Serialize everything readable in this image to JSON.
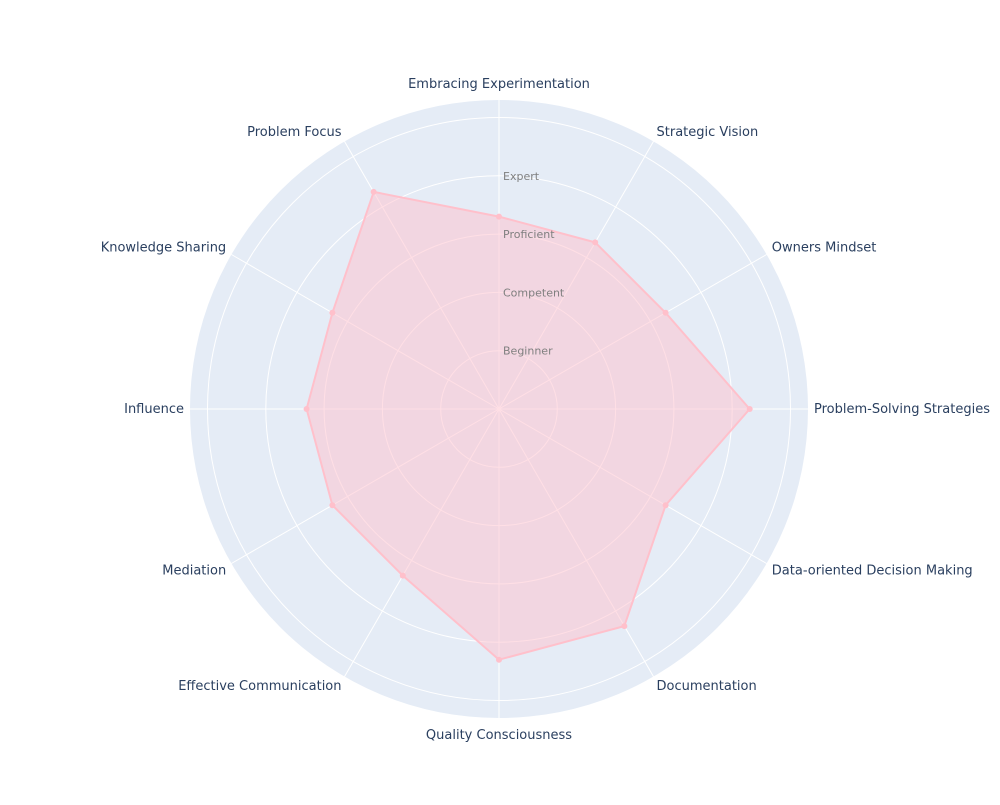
{
  "chart_data": {
    "type": "radar",
    "axes": [
      "Embracing Experimentation",
      "Strategic Vision",
      "Owners Mindset",
      "Problem-Solving Strategies",
      "Data-oriented Decision Making",
      "Documentation",
      "Quality Consciousness",
      "Effective Communication",
      "Mediation",
      "Influence",
      "Knowledge Sharing",
      "Problem Focus"
    ],
    "radial_ticks": [
      "Beginner",
      "Competent",
      "Proficient",
      "Expert"
    ],
    "radial_range": [
      0,
      5.3
    ],
    "series": [
      {
        "values": [
          3.3,
          3.3,
          3.3,
          4.3,
          3.3,
          4.3,
          4.3,
          3.3,
          3.3,
          3.3,
          3.3,
          4.3
        ]
      }
    ],
    "colors": {
      "polar_background": "#e5ecf6",
      "grid": "#ffffff",
      "series_line": "#ffc0cb",
      "series_fill": "#ffc0cb",
      "axis_label": "#2a3f5f",
      "tick_label": "#7f7f7f"
    }
  }
}
